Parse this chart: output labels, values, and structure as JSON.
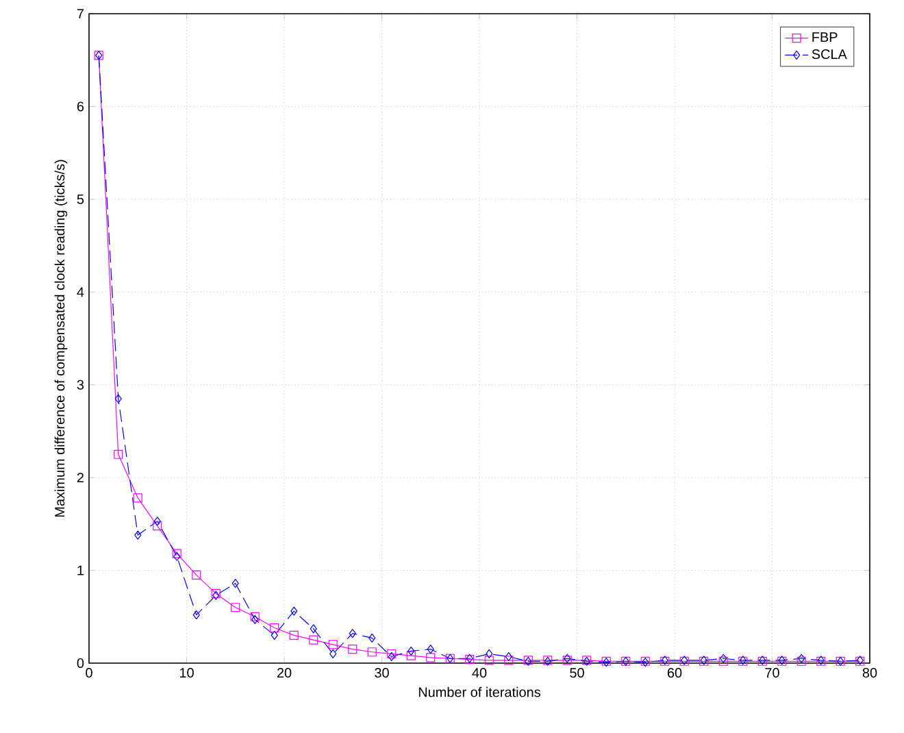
{
  "chart_data": {
    "type": "line",
    "xlabel": "Number of iterations",
    "ylabel": "Maximum difference of compensated clock reading (ticks/s)",
    "x": [
      1,
      3,
      5,
      7,
      9,
      11,
      13,
      15,
      17,
      19,
      21,
      23,
      25,
      27,
      29,
      31,
      33,
      35,
      37,
      39,
      41,
      43,
      45,
      47,
      49,
      51,
      53,
      55,
      57,
      59,
      61,
      63,
      65,
      67,
      69,
      71,
      73,
      75,
      77,
      79
    ],
    "series": [
      {
        "name": "FBP",
        "color": "#ff00ff",
        "marker": "square",
        "line_style": "solid",
        "values": [
          6.55,
          2.25,
          1.78,
          1.48,
          1.18,
          0.95,
          0.75,
          0.6,
          0.5,
          0.38,
          0.3,
          0.25,
          0.2,
          0.15,
          0.12,
          0.1,
          0.08,
          0.06,
          0.05,
          0.04,
          0.03,
          0.03,
          0.03,
          0.03,
          0.03,
          0.03,
          0.02,
          0.02,
          0.02,
          0.02,
          0.02,
          0.02,
          0.02,
          0.02,
          0.02,
          0.02,
          0.02,
          0.02,
          0.02,
          0.02
        ]
      },
      {
        "name": "SCLA",
        "color": "#0000ff",
        "marker": "diamond",
        "line_style": "dashed",
        "values": [
          6.55,
          2.85,
          1.38,
          1.53,
          1.15,
          0.52,
          0.73,
          0.86,
          0.47,
          0.3,
          0.56,
          0.37,
          0.1,
          0.32,
          0.27,
          0.07,
          0.13,
          0.15,
          0.05,
          0.05,
          0.1,
          0.07,
          0.02,
          0.02,
          0.05,
          0.02,
          0.01,
          0.02,
          0.01,
          0.03,
          0.03,
          0.03,
          0.05,
          0.03,
          0.03,
          0.03,
          0.05,
          0.03,
          0.02,
          0.03
        ]
      }
    ],
    "xlim": [
      0,
      80
    ],
    "ylim": [
      0,
      7
    ],
    "xticks": [
      0,
      10,
      20,
      30,
      40,
      50,
      60,
      70,
      80
    ],
    "yticks": [
      0,
      1,
      2,
      3,
      4,
      5,
      6,
      7
    ],
    "grid": true,
    "legend": "top right"
  }
}
